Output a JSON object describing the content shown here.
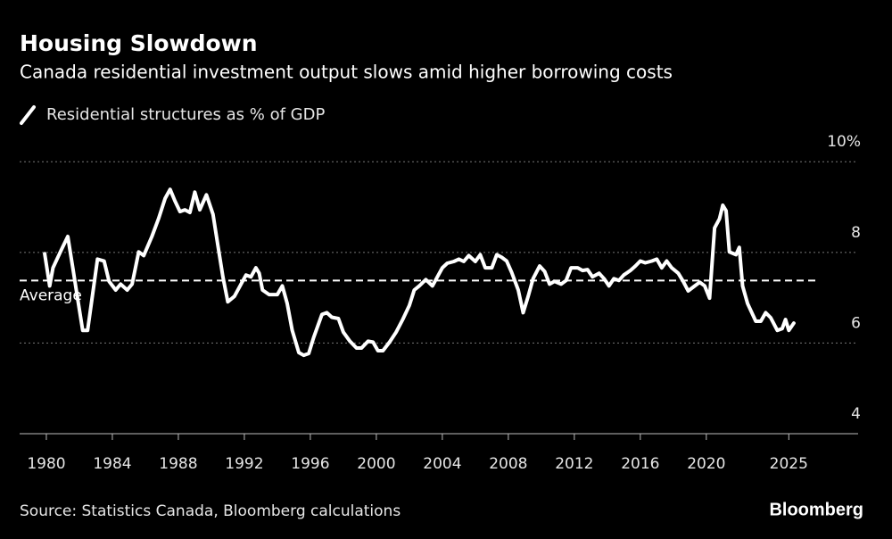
{
  "chart_data": {
    "type": "line",
    "title": "Housing Slowdown",
    "subtitle": "Canada residential investment output slows amid higher borrowing costs",
    "source": "Source: Statistics Canada, Bloomberg calculations",
    "brand": "Bloomberg",
    "average": 7.38,
    "average_label": "Average",
    "xlim": [
      1978.38,
      2029.2
    ],
    "xticks": [
      1980,
      1984,
      1988,
      1992,
      1996,
      2000,
      2004,
      2008,
      2012,
      2016,
      2020,
      2025
    ],
    "ylim": [
      4,
      10.3
    ],
    "yticks": [
      4,
      6,
      8,
      {
        "value": 10,
        "label": "10%"
      }
    ],
    "grid": true,
    "x": [
      1979.9,
      1980.2,
      1980.4,
      1980.9,
      1981.3,
      1981.6,
      1981.9,
      1982.2,
      1982.5,
      1982.8,
      1983.1,
      1983.5,
      1983.8,
      1984.2,
      1984.5,
      1984.9,
      1985.2,
      1985.6,
      1985.9,
      1986.4,
      1986.8,
      1987.2,
      1987.5,
      1987.8,
      1988.1,
      1988.4,
      1988.7,
      1989.0,
      1989.3,
      1989.7,
      1990.1,
      1990.4,
      1990.7,
      1991.0,
      1991.4,
      1991.8,
      1992.1,
      1992.4,
      1992.7,
      1992.9,
      1993.1,
      1993.5,
      1994.0,
      1994.3,
      1994.6,
      1994.9,
      1995.3,
      1995.6,
      1995.9,
      1996.2,
      1996.7,
      1997.0,
      1997.3,
      1997.7,
      1998.0,
      1998.4,
      1998.8,
      1999.1,
      1999.5,
      1999.8,
      2000.1,
      2000.4,
      2000.8,
      2001.2,
      2001.6,
      2002.0,
      2002.3,
      2002.6,
      2003.0,
      2003.4,
      2003.7,
      2004.0,
      2004.3,
      2004.7,
      2005.0,
      2005.3,
      2005.6,
      2006.0,
      2006.3,
      2006.6,
      2007.0,
      2007.3,
      2007.6,
      2007.9,
      2008.2,
      2008.6,
      2008.9,
      2009.2,
      2009.5,
      2009.9,
      2010.2,
      2010.5,
      2010.8,
      2011.2,
      2011.5,
      2011.8,
      2012.2,
      2012.5,
      2012.8,
      2013.1,
      2013.5,
      2013.8,
      2014.1,
      2014.4,
      2014.7,
      2015.0,
      2015.4,
      2015.7,
      2016.0,
      2016.3,
      2016.7,
      2017.0,
      2017.3,
      2017.6,
      2017.9,
      2018.3,
      2018.6,
      2018.9,
      2019.3,
      2019.6,
      2019.9,
      2020.2,
      2020.5,
      2020.8,
      2021.0,
      2021.2,
      2021.4,
      2021.8,
      2022.0,
      2022.2,
      2022.5,
      2023.0,
      2023.3,
      2023.6,
      2023.9,
      2024.3,
      2024.6,
      2024.8,
      2025.0,
      2025.3
    ],
    "series": [
      {
        "name": "Residential structures as % of GDP",
        "color": "#ffffff",
        "values": [
          7.97,
          7.26,
          7.66,
          8.05,
          8.35,
          7.66,
          6.97,
          6.28,
          6.28,
          7.07,
          7.85,
          7.81,
          7.36,
          7.17,
          7.3,
          7.17,
          7.3,
          8.01,
          7.93,
          8.35,
          8.74,
          9.19,
          9.39,
          9.13,
          8.9,
          8.94,
          8.88,
          9.33,
          8.94,
          9.27,
          8.84,
          8.15,
          7.46,
          6.91,
          7.03,
          7.3,
          7.5,
          7.46,
          7.66,
          7.54,
          7.17,
          7.07,
          7.07,
          7.26,
          6.87,
          6.28,
          5.79,
          5.73,
          5.77,
          6.12,
          6.63,
          6.67,
          6.57,
          6.54,
          6.24,
          6.04,
          5.89,
          5.89,
          6.04,
          6.02,
          5.83,
          5.83,
          6.02,
          6.24,
          6.52,
          6.83,
          7.17,
          7.26,
          7.4,
          7.26,
          7.46,
          7.66,
          7.76,
          7.8,
          7.85,
          7.8,
          7.93,
          7.8,
          7.95,
          7.66,
          7.66,
          7.95,
          7.89,
          7.81,
          7.56,
          7.17,
          6.67,
          7.03,
          7.42,
          7.7,
          7.58,
          7.3,
          7.36,
          7.3,
          7.38,
          7.66,
          7.66,
          7.6,
          7.62,
          7.46,
          7.54,
          7.42,
          7.26,
          7.42,
          7.38,
          7.5,
          7.6,
          7.7,
          7.81,
          7.77,
          7.81,
          7.85,
          7.66,
          7.81,
          7.66,
          7.54,
          7.36,
          7.15,
          7.26,
          7.34,
          7.26,
          6.99,
          8.54,
          8.74,
          9.04,
          8.92,
          8.01,
          7.95,
          8.11,
          7.26,
          6.87,
          6.48,
          6.48,
          6.67,
          6.56,
          6.28,
          6.32,
          6.52,
          6.28,
          6.44
        ]
      }
    ]
  }
}
